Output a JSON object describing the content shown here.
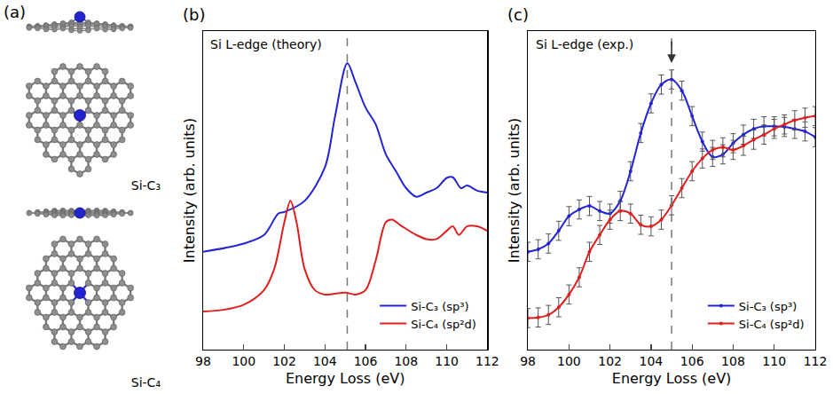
{
  "panel_a": {
    "panel_label": "(a)",
    "structures": [
      {
        "label": "Si-C₃"
      },
      {
        "label": "Si-C₄"
      }
    ]
  },
  "chart_data": [
    {
      "panel_label": "(b)",
      "type": "line",
      "title": "Si L-edge (theory)",
      "x_label": "Energy Loss (eV)",
      "y_label": "Intensity (arb. units)",
      "xlim": [
        98,
        112
      ],
      "xticks": [
        98,
        100,
        102,
        104,
        106,
        108,
        110,
        112
      ],
      "ylim": [
        0,
        100
      ],
      "tick_labels": "x",
      "legend": "lower right",
      "reference_line_x": 105.1,
      "series": [
        {
          "name": "Si-C₃ (sp³)",
          "color": "#2323d6",
          "line_style": "solid",
          "x": [
            98,
            100,
            101,
            101.7,
            102,
            103,
            104,
            104.5,
            105.1,
            105.5,
            106,
            106.5,
            107,
            107.5,
            108,
            108.5,
            109,
            109.5,
            110,
            110.3,
            110.7,
            111,
            111.5,
            112
          ],
          "values": [
            30.7,
            33.3,
            36,
            42.7,
            43.2,
            46.7,
            57.3,
            73.3,
            89.9,
            84,
            76,
            70.7,
            61.3,
            56,
            50.7,
            48,
            49.3,
            50.7,
            53.9,
            54.1,
            50.7,
            51.5,
            49.9,
            49.3
          ]
        },
        {
          "name": "Si-C₄ (sp²d)",
          "color": "#e11e1e",
          "line_style": "solid",
          "x": [
            98,
            99,
            100,
            101,
            101.5,
            102,
            102.3,
            102.6,
            103,
            103.5,
            104,
            105,
            105.5,
            106,
            106.5,
            107,
            107.3,
            107.8,
            108.5,
            109,
            109.5,
            110,
            110.3,
            110.6,
            111,
            111.5,
            112
          ],
          "values": [
            12,
            12.5,
            14.1,
            18.7,
            25.3,
            40,
            46.7,
            40,
            25.3,
            18.7,
            17.3,
            17.9,
            17.3,
            18.7,
            28,
            40,
            40.8,
            38.7,
            36,
            34.7,
            34.7,
            37.3,
            38.7,
            36,
            38.7,
            38.7,
            37.3
          ]
        }
      ]
    },
    {
      "panel_label": "(c)",
      "type": "line",
      "title": "Si L-edge (exp.)",
      "x_label": "Energy Loss (eV)",
      "y_label": "Intensity (arb. units)",
      "xlim": [
        98,
        112
      ],
      "xticks": [
        98,
        100,
        102,
        104,
        106,
        108,
        110,
        112
      ],
      "ylim": [
        0,
        100
      ],
      "tick_labels": "x",
      "legend": "lower right",
      "reference_line_x": 105,
      "arrow_x": 105,
      "series": [
        {
          "name": "Si-C₃ (sp³)",
          "color": "#2323d6",
          "line_style": "solid",
          "marker": "circle",
          "x": [
            98,
            98.5,
            99,
            99.5,
            100,
            100.5,
            101,
            101.5,
            102,
            102.5,
            103,
            103.5,
            104,
            104.5,
            105,
            105.5,
            106,
            106.5,
            107,
            107.5,
            108,
            108.5,
            109,
            109.5,
            110,
            110.5,
            111,
            111.5,
            112
          ],
          "values": [
            30.7,
            31.5,
            33.3,
            37.3,
            41.9,
            44,
            45.1,
            43.5,
            42.7,
            46.7,
            56,
            68,
            77.3,
            83.2,
            84.8,
            81.3,
            73.3,
            65.3,
            60.5,
            61.3,
            64.8,
            67.5,
            69.3,
            70.1,
            70.1,
            69.9,
            69.3,
            68.5,
            66.7
          ],
          "errors": [
            3,
            3,
            3,
            3,
            3,
            3,
            3,
            3,
            3,
            3,
            3,
            3,
            3,
            3,
            3,
            3,
            3,
            3,
            3,
            3,
            3,
            3,
            3,
            3,
            3,
            3,
            3,
            3,
            3
          ]
        },
        {
          "name": "Si-C₄ (sp²d)",
          "color": "#e11e1e",
          "line_style": "solid",
          "marker": "circle",
          "x": [
            98,
            98.5,
            99,
            99.5,
            100,
            100.5,
            101,
            101.5,
            102,
            102.5,
            103,
            103.5,
            104,
            104.5,
            105,
            105.5,
            106,
            106.5,
            107,
            107.5,
            108,
            108.5,
            109,
            109.5,
            110,
            110.5,
            111,
            111.5,
            112
          ],
          "values": [
            9.9,
            10.1,
            10.9,
            13.3,
            17.3,
            22.7,
            30.7,
            36,
            40.8,
            43.5,
            42.7,
            39.2,
            38.7,
            40.8,
            45.3,
            50.7,
            56,
            60,
            62.7,
            63.5,
            62.7,
            64,
            65.9,
            67.5,
            69.3,
            70.7,
            72,
            72.8,
            73.3
          ],
          "errors": [
            3,
            3,
            3,
            3,
            3,
            3,
            3,
            3,
            3,
            3,
            3,
            3,
            3,
            3,
            3,
            3,
            3,
            3,
            3,
            3,
            3,
            3,
            3,
            3,
            3,
            3,
            3,
            3,
            3
          ]
        }
      ]
    }
  ]
}
